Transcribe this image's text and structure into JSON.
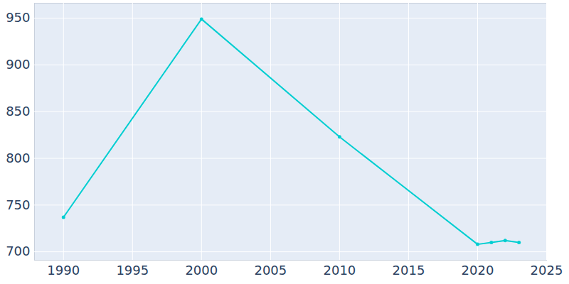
{
  "chart_data": {
    "type": "line",
    "x": [
      1990,
      2000,
      2010,
      2020,
      2021,
      2022,
      2023
    ],
    "values": [
      737,
      949,
      823,
      708,
      710,
      712,
      710
    ],
    "color": "#00ced1",
    "marker": "circle",
    "xlim": [
      1987.9,
      2025
    ],
    "xticks": [
      1990,
      1995,
      2000,
      2005,
      2010,
      2015,
      2020,
      2025
    ],
    "ylim": [
      691,
      966
    ],
    "yticks": [
      700,
      750,
      800,
      850,
      900,
      950
    ],
    "grid": true
  }
}
